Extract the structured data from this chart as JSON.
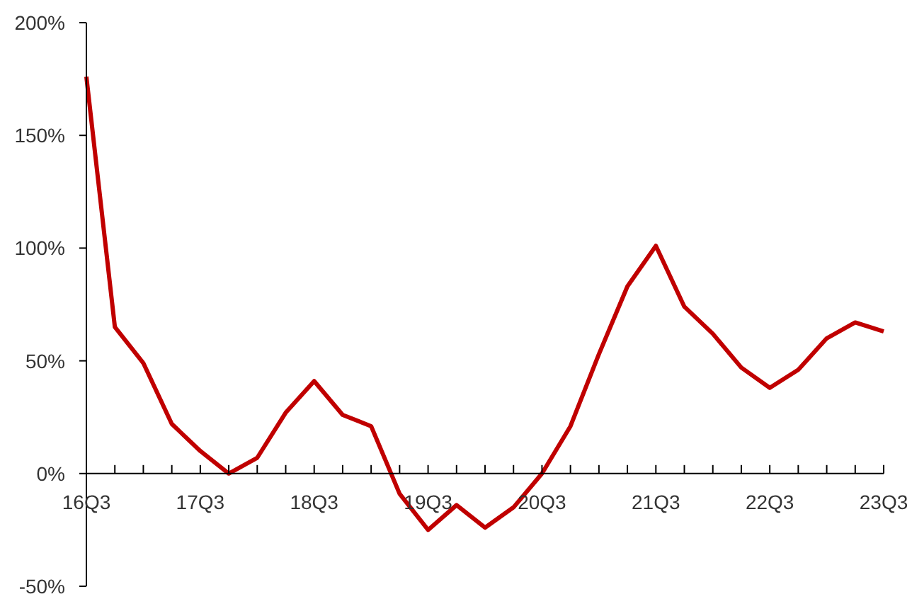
{
  "chart_data": {
    "type": "line",
    "categories": [
      "16Q3",
      null,
      null,
      null,
      "17Q3",
      null,
      null,
      null,
      "18Q3",
      null,
      null,
      null,
      "19Q3",
      null,
      null,
      null,
      "20Q3",
      null,
      null,
      null,
      "21Q3",
      null,
      null,
      null,
      "22Q3",
      null,
      null,
      null,
      "23Q3"
    ],
    "values": [
      176,
      65,
      49,
      22,
      10,
      0,
      7,
      27,
      41,
      26,
      21,
      -9,
      -25,
      -14,
      -24,
      -15,
      0,
      21,
      53,
      83,
      101,
      74,
      62,
      47,
      38,
      46,
      60,
      67,
      63
    ],
    "color": "#c00000",
    "marker": "none",
    "line_style": "solid",
    "ylim": [
      -50,
      200
    ],
    "yticks": [
      {
        "value": -50,
        "label": "-50%"
      },
      {
        "value": 0,
        "label": "0%"
      },
      {
        "value": 50,
        "label": "50%"
      },
      {
        "value": 100,
        "label": "100%"
      },
      {
        "value": 150,
        "label": "150%"
      },
      {
        "value": 200,
        "label": "200%"
      }
    ]
  }
}
